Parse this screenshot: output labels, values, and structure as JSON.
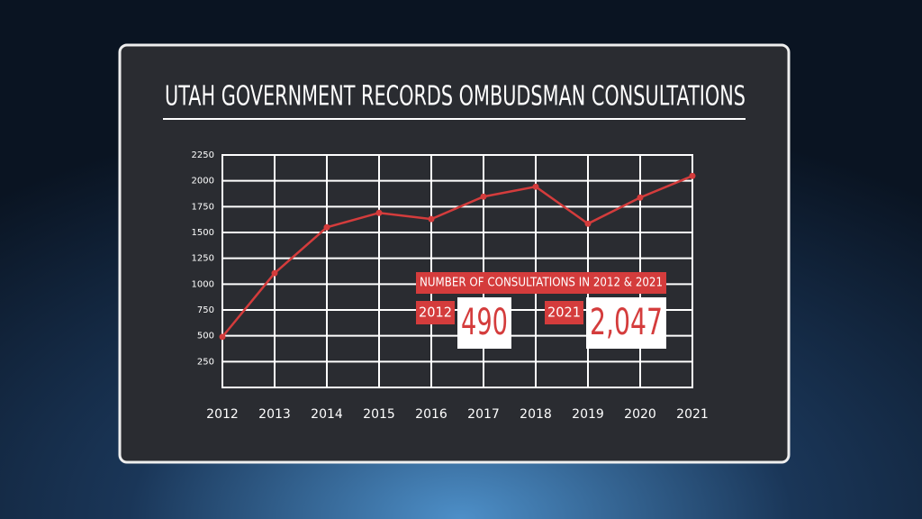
{
  "chart_data": {
    "type": "line",
    "title": "UTAH GOVERNMENT RECORDS OMBUDSMAN CONSULTATIONS",
    "x": [
      2012,
      2013,
      2014,
      2015,
      2016,
      2017,
      2018,
      2019,
      2020,
      2021
    ],
    "xlim": [
      2012,
      2021
    ],
    "xticks": [
      2012,
      2013,
      2014,
      2015,
      2016,
      2017,
      2018,
      2019,
      2020,
      2021
    ],
    "values": [
      490,
      1106,
      1550,
      1690,
      1630,
      1847,
      1943,
      1585,
      1838,
      2047
    ],
    "value_labels": [
      "490",
      null,
      null,
      null,
      null,
      null,
      null,
      null,
      null,
      "2,047"
    ],
    "color": "#d43c3c",
    "ylim": [
      0,
      2250
    ],
    "yticks": [
      250,
      500,
      750,
      1000,
      1250,
      1500,
      1750,
      2000,
      2250
    ],
    "grid": true,
    "annotation": "NUMBER OF CONSULTATIONS IN 2012 & 2021"
  }
}
